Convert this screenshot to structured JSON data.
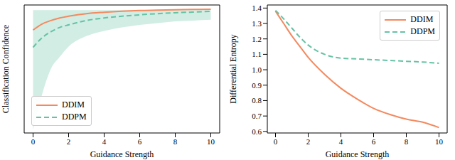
{
  "chart_data": [
    {
      "type": "line",
      "x_label": "Guidance Strength",
      "y_label": "Classification Confidence",
      "x": [
        0,
        0.5,
        1,
        1.5,
        2,
        3,
        4,
        5,
        6,
        7,
        8,
        9,
        10
      ],
      "xlim": [
        -0.5,
        10.5
      ],
      "xticks": [
        0,
        2,
        4,
        6,
        8,
        10
      ],
      "ylim": [
        0.28,
        1.02
      ],
      "tick_labels": "x",
      "legend": "lower left",
      "series": [
        {
          "name": "DDIM",
          "color": "#f4895f",
          "line_style": "solid",
          "values": [
            0.875,
            0.91,
            0.93,
            0.945,
            0.955,
            0.97,
            0.978,
            0.984,
            0.988,
            0.99,
            0.992,
            0.994,
            0.995
          ]
        },
        {
          "name": "DDPM",
          "color": "#66c2a5",
          "line_style": "dashed",
          "values": [
            0.775,
            0.83,
            0.865,
            0.89,
            0.905,
            0.93,
            0.945,
            0.955,
            0.963,
            0.97,
            0.975,
            0.979,
            0.983
          ],
          "lower": [
            0.3,
            0.5,
            0.65,
            0.72,
            0.78,
            0.84,
            0.87,
            0.89,
            0.905,
            0.915,
            0.925,
            0.93,
            0.935
          ],
          "upper": [
            0.99,
            0.99,
            0.99,
            0.99,
            0.99,
            0.99,
            0.99,
            0.99,
            0.99,
            0.99,
            0.99,
            0.99,
            0.99
          ]
        }
      ]
    },
    {
      "type": "line",
      "x_label": "Guidance Strength",
      "y_label": "Differential Entropy",
      "x": [
        0,
        0.5,
        1,
        1.5,
        2,
        3,
        4,
        5,
        6,
        7,
        8,
        9,
        10
      ],
      "xlim": [
        -0.5,
        10.5
      ],
      "xticks": [
        0,
        2,
        4,
        6,
        8,
        10
      ],
      "ylim": [
        0.59,
        1.42
      ],
      "yticks": [
        0.6,
        0.7,
        0.8,
        0.9,
        {
          "value": 1,
          "label": "1.0"
        },
        1.1,
        1.2,
        1.3,
        1.4
      ],
      "legend": "upper right",
      "series": [
        {
          "name": "DDIM",
          "color": "#f4895f",
          "line_style": "solid",
          "values": [
            1.38,
            1.3,
            1.22,
            1.15,
            1.08,
            0.97,
            0.88,
            0.81,
            0.75,
            0.71,
            0.68,
            0.66,
            0.625
          ]
        },
        {
          "name": "DDPM",
          "color": "#66c2a5",
          "line_style": "dashed",
          "values": [
            1.385,
            1.33,
            1.27,
            1.21,
            1.16,
            1.1,
            1.075,
            1.07,
            1.065,
            1.06,
            1.055,
            1.05,
            1.042
          ]
        }
      ]
    }
  ]
}
